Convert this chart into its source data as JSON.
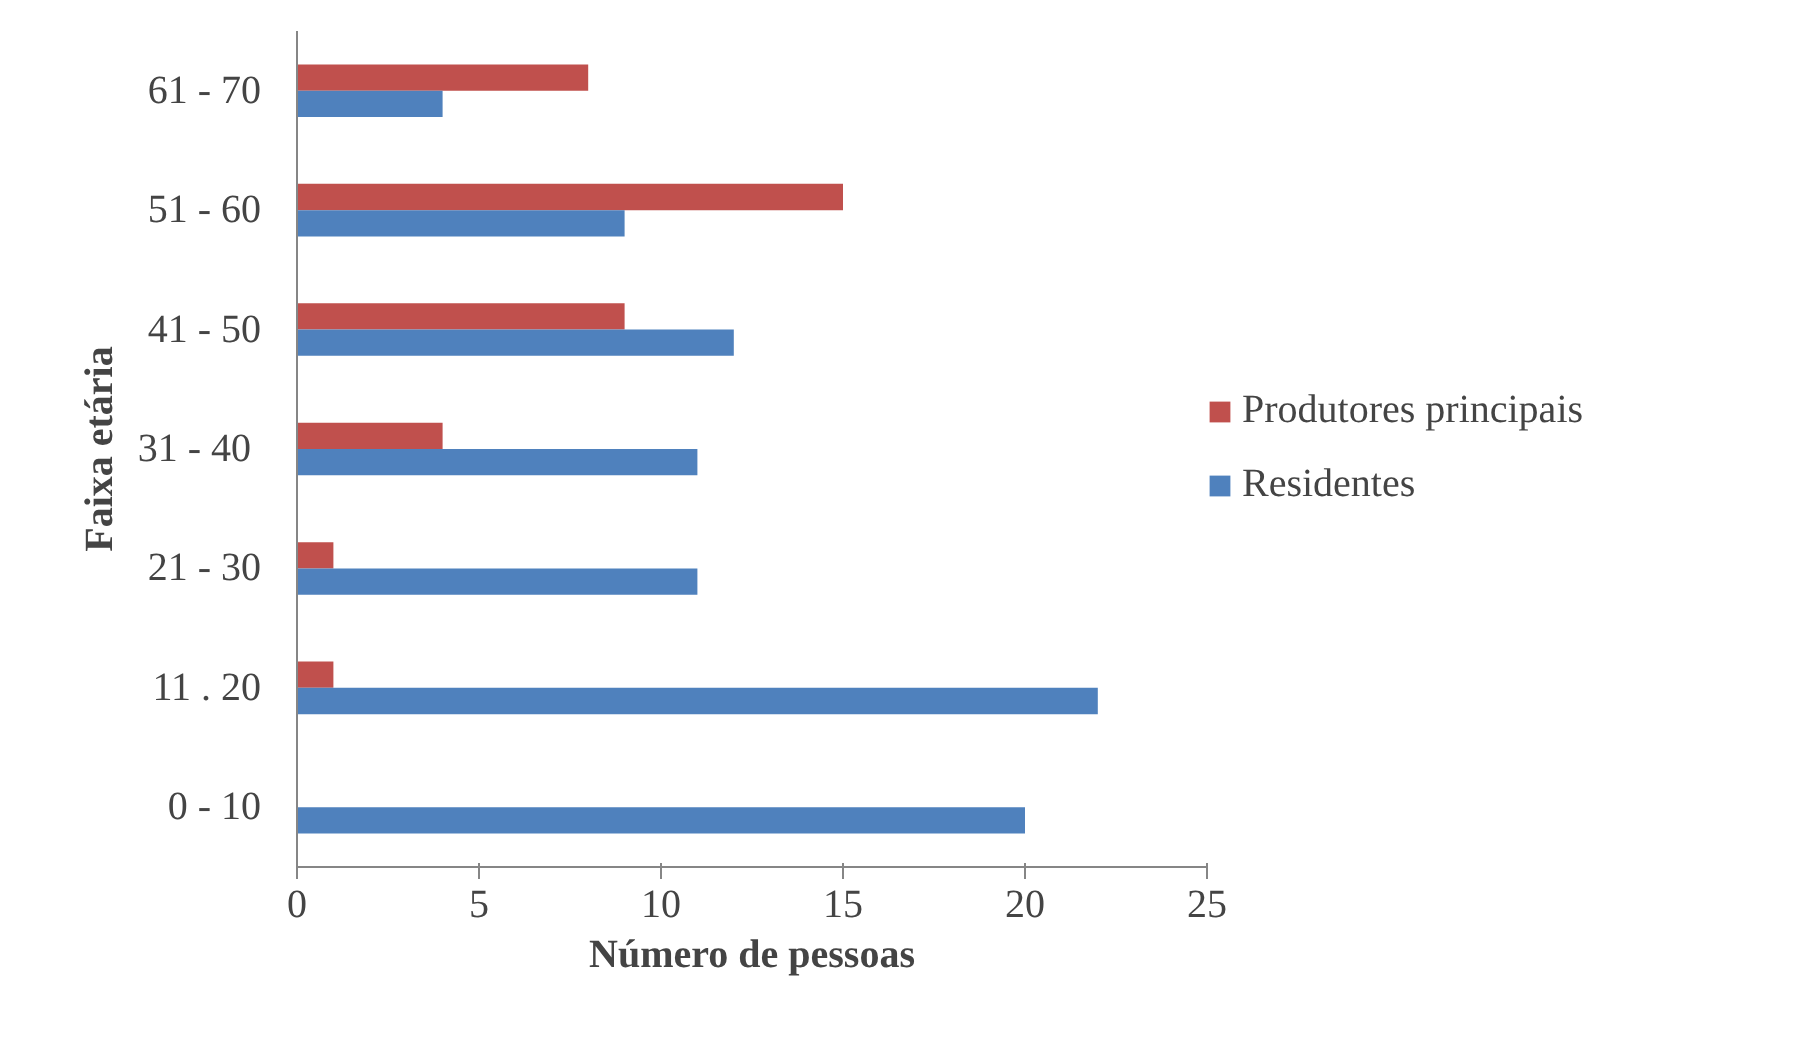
{
  "chart_data": {
    "type": "bar",
    "orientation": "horizontal",
    "xlabel": "Número de pessoas",
    "ylabel": "Faixa etária",
    "categories": [
      "61 - 70",
      "51 - 60",
      "41 - 50",
      "31  - 40",
      "21 - 30",
      "11 . 20",
      "0 - 10"
    ],
    "series": [
      {
        "name": "Produtores principais",
        "color": "#c0504d",
        "values": [
          8,
          15,
          9,
          4,
          1,
          1,
          0
        ]
      },
      {
        "name": "Residentes",
        "color": "#4f81bd",
        "values": [
          4,
          9,
          12,
          11,
          11,
          22,
          20
        ]
      }
    ],
    "xlim": [
      0,
      25
    ],
    "xticks": [
      0,
      5,
      10,
      15,
      20,
      25
    ],
    "grid": false,
    "legend": "right"
  }
}
